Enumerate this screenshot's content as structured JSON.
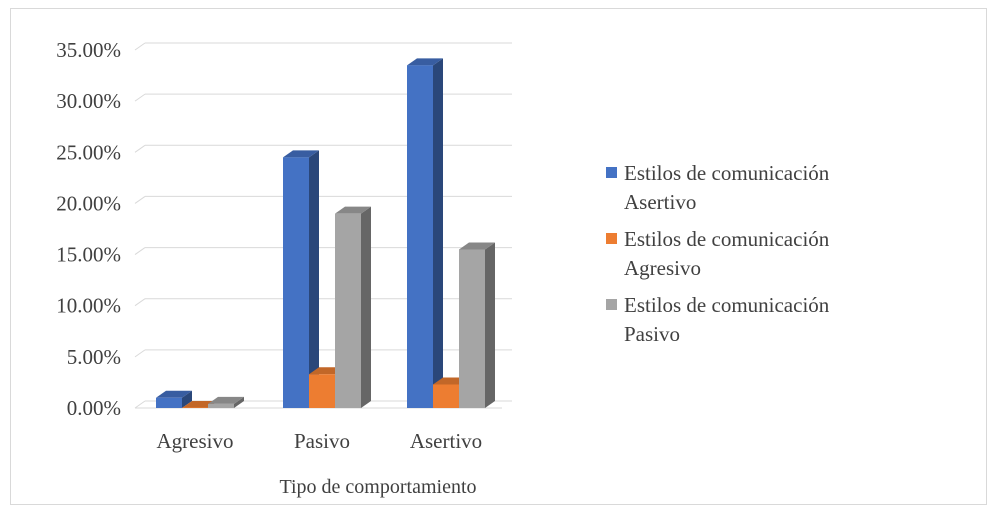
{
  "chart_data": {
    "type": "bar",
    "style": "3d-clustered-column",
    "categories": [
      "Agresivo",
      "Pasivo",
      "Asertivo"
    ],
    "series": [
      {
        "name": [
          "Estilos de comunicación",
          "Asertivo"
        ],
        "color": "#4472c4",
        "values": [
          1.0,
          24.5,
          33.5
        ]
      },
      {
        "name": [
          "Estilos de comunicación",
          "Agresivo"
        ],
        "color": "#ed7d31",
        "values": [
          0.0,
          3.3,
          2.3
        ]
      },
      {
        "name": [
          "Estilos de comunicación",
          "Pasivo"
        ],
        "color": "#a5a5a5",
        "values": [
          0.4,
          19.0,
          15.5
        ]
      }
    ],
    "yticks": [
      "0.00%",
      "5.00%",
      "10.00%",
      "15.00%",
      "20.00%",
      "25.00%",
      "30.00%",
      "35.00%"
    ],
    "ylim": [
      0,
      35
    ],
    "xlabel": "Tipo de comportamiento",
    "ylabel": "",
    "grid": true,
    "legend": "right"
  }
}
